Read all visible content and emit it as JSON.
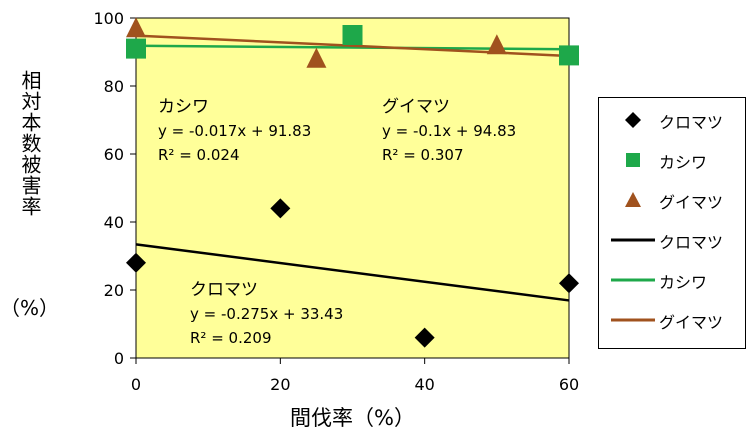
{
  "chart_data": {
    "type": "scatter",
    "xlabel": "間伐率（%）",
    "ylabel": "相対本数被害率",
    "ylabel_unit": "（%）",
    "xlim": [
      0,
      60
    ],
    "ylim": [
      0,
      100
    ],
    "x_ticks": [
      "0",
      "20",
      "40",
      "60"
    ],
    "y_ticks": [
      "0",
      "20",
      "40",
      "60",
      "80",
      "100"
    ],
    "grid": false,
    "plot_background": "#ffff99",
    "legend_position": "right",
    "series": [
      {
        "name": "クロマツ",
        "marker": "diamond",
        "color": "#000000",
        "points": [
          [
            0,
            28
          ],
          [
            20,
            44
          ],
          [
            40,
            6
          ],
          [
            60,
            22
          ]
        ],
        "trendline": {
          "name": "クロマツ",
          "color": "#000000",
          "slope": -0.275,
          "intercept": 33.43
        }
      },
      {
        "name": "カシワ",
        "marker": "square",
        "color": "#1ea84a",
        "points": [
          [
            0,
            91
          ],
          [
            30,
            95
          ],
          [
            60,
            89
          ]
        ],
        "trendline": {
          "name": "カシワ",
          "color": "#1ea84a",
          "slope": -0.017,
          "intercept": 91.83
        }
      },
      {
        "name": "グイマツ",
        "marker": "triangle",
        "color": "#a0521e",
        "points": [
          [
            0,
            97
          ],
          [
            25,
            88
          ],
          [
            50,
            92
          ]
        ],
        "trendline": {
          "name": "グイマツ",
          "color": "#a0521e",
          "slope": -0.1,
          "intercept": 94.83
        }
      }
    ],
    "annotations": [
      {
        "id": "kashiwa",
        "lines": [
          "カシワ",
          "y = -0.017x + 91.83",
          "R² = 0.024"
        ]
      },
      {
        "id": "guimatsu",
        "lines": [
          "グイマツ",
          "y = -0.1x + 94.83",
          "R² = 0.307"
        ]
      },
      {
        "id": "kuromatsu",
        "lines": [
          "クロマツ",
          "y = -0.275x + 33.43",
          "R² = 0.209"
        ]
      }
    ],
    "legend": [
      "クロマツ",
      "カシワ",
      "グイマツ",
      "クロマツ",
      "カシワ",
      "グイマツ"
    ]
  }
}
